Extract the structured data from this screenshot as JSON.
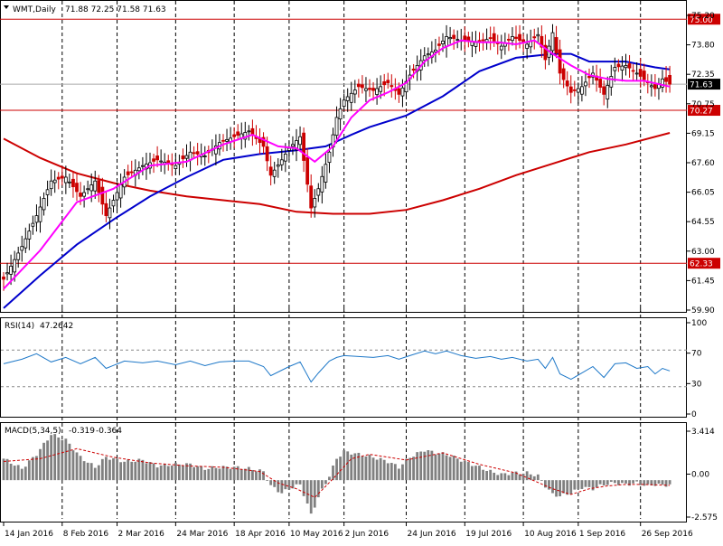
{
  "main_header": {
    "symbol_label": "WMT,Daily",
    "ohlc": "71.88 72.25 71.58 71.63"
  },
  "rsi_header": {
    "label": "RSI(14)",
    "value": "47.2642"
  },
  "macd_header": {
    "label": "MACD(5,34,5)",
    "value1": "-0.319",
    "value2": "-0.364"
  },
  "colors": {
    "background": "#ffffff",
    "bull_candle": "#000000",
    "bear_candle": "#cc0000",
    "ma_fast": "#ff00ff",
    "ma_mid": "#0000cc",
    "ma_slow": "#cc0000",
    "rsi_line": "#1e78c8",
    "macd_hist": "#808080",
    "macd_signal": "#cc0000",
    "hline": "#cc0000",
    "price_tag": "#cc0000",
    "current_tag": "#000000"
  },
  "chart_data": [
    {
      "type": "candlestick",
      "panel": "price",
      "x_tick_labels": [
        "14 Jan 2016",
        "8 Feb 2016",
        "2 Mar 2016",
        "24 Mar 2016",
        "18 Apr 2016",
        "10 May 2016",
        "2 Jun 2016",
        "24 Jun 2016",
        "19 Jul 2016",
        "10 Aug 2016",
        "1 Sep 2016",
        "26 Sep 2016"
      ],
      "y_tick_labels": [
        "75.20",
        "73.80",
        "72.35",
        "70.75",
        "69.15",
        "67.60",
        "66.05",
        "64.55",
        "63.00",
        "61.45",
        "59.90"
      ],
      "ylim": [
        59.9,
        75.2
      ],
      "horizontal_lines": [
        {
          "value": 75.0,
          "label": "75.00"
        },
        {
          "value": 70.27,
          "label": "70.27"
        },
        {
          "value": 62.33,
          "label": "62.33"
        }
      ],
      "current_price": {
        "value": 71.63,
        "label": "71.63"
      },
      "close_path": [
        [
          0,
          61.5
        ],
        [
          5,
          63.2
        ],
        [
          9,
          64.8
        ],
        [
          13,
          66.6
        ],
        [
          17,
          66.8
        ],
        [
          21,
          65.8
        ],
        [
          25,
          66.6
        ],
        [
          28,
          64.8
        ],
        [
          33,
          66.8
        ],
        [
          38,
          67.4
        ],
        [
          42,
          67.7
        ],
        [
          47,
          67.4
        ],
        [
          51,
          68.1
        ],
        [
          55,
          67.9
        ],
        [
          59,
          68.6
        ],
        [
          63,
          68.9
        ],
        [
          67,
          69.2
        ],
        [
          71,
          68.4
        ],
        [
          73,
          66.9
        ],
        [
          76,
          67.7
        ],
        [
          78,
          68.3
        ],
        [
          81,
          68.9
        ],
        [
          84,
          65.2
        ],
        [
          86,
          66.2
        ],
        [
          89,
          68.1
        ],
        [
          91,
          69.9
        ],
        [
          93,
          70.8
        ],
        [
          97,
          71.5
        ],
        [
          101,
          71.3
        ],
        [
          105,
          71.7
        ],
        [
          108,
          71.1
        ],
        [
          111,
          72.1
        ],
        [
          115,
          73.1
        ],
        [
          118,
          73.4
        ],
        [
          121,
          74.1
        ],
        [
          125,
          73.9
        ],
        [
          129,
          73.8
        ],
        [
          133,
          74.0
        ],
        [
          136,
          73.6
        ],
        [
          139,
          74.1
        ],
        [
          143,
          73.7
        ],
        [
          146,
          74.2
        ],
        [
          148,
          72.9
        ],
        [
          150,
          74.3
        ],
        [
          152,
          72.2
        ],
        [
          155,
          71.2
        ],
        [
          158,
          71.5
        ],
        [
          161,
          72.2
        ],
        [
          164,
          71.1
        ],
        [
          167,
          72.5
        ],
        [
          170,
          72.6
        ],
        [
          173,
          72.2
        ],
        [
          176,
          71.7
        ],
        [
          178,
          71.4
        ],
        [
          180,
          71.9
        ],
        [
          182,
          71.63
        ]
      ],
      "series": [
        {
          "name": "MA fast",
          "values": [
            [
              0,
              61.0
            ],
            [
              10,
              63.0
            ],
            [
              20,
              65.5
            ],
            [
              30,
              66.2
            ],
            [
              40,
              67.4
            ],
            [
              50,
              67.6
            ],
            [
              60,
              68.5
            ],
            [
              68,
              69.0
            ],
            [
              75,
              68.4
            ],
            [
              80,
              68.3
            ],
            [
              85,
              67.6
            ],
            [
              90,
              68.4
            ],
            [
              95,
              69.9
            ],
            [
              100,
              70.8
            ],
            [
              105,
              71.2
            ],
            [
              110,
              71.7
            ],
            [
              115,
              72.8
            ],
            [
              120,
              73.5
            ],
            [
              125,
              73.9
            ],
            [
              130,
              73.8
            ],
            [
              135,
              73.8
            ],
            [
              140,
              73.7
            ],
            [
              145,
              73.9
            ],
            [
              150,
              73.2
            ],
            [
              155,
              72.6
            ],
            [
              160,
              72.1
            ],
            [
              165,
              71.9
            ],
            [
              170,
              71.8
            ],
            [
              175,
              71.8
            ],
            [
              182,
              71.5
            ]
          ]
        },
        {
          "name": "MA mid",
          "values": [
            [
              0,
              60.0
            ],
            [
              10,
              61.7
            ],
            [
              20,
              63.3
            ],
            [
              30,
              64.6
            ],
            [
              40,
              65.8
            ],
            [
              50,
              66.8
            ],
            [
              60,
              67.7
            ],
            [
              70,
              68.0
            ],
            [
              80,
              68.2
            ],
            [
              88,
              68.4
            ],
            [
              95,
              69.0
            ],
            [
              100,
              69.4
            ],
            [
              110,
              70.0
            ],
            [
              120,
              71.0
            ],
            [
              130,
              72.3
            ],
            [
              140,
              73.0
            ],
            [
              150,
              73.2
            ],
            [
              155,
              73.2
            ],
            [
              160,
              72.8
            ],
            [
              170,
              72.8
            ],
            [
              178,
              72.5
            ],
            [
              182,
              72.4
            ]
          ]
        },
        {
          "name": "MA slow",
          "values": [
            [
              0,
              68.8
            ],
            [
              10,
              67.8
            ],
            [
              20,
              67.0
            ],
            [
              30,
              66.5
            ],
            [
              40,
              66.1
            ],
            [
              50,
              65.8
            ],
            [
              60,
              65.6
            ],
            [
              70,
              65.4
            ],
            [
              80,
              65.0
            ],
            [
              90,
              64.9
            ],
            [
              100,
              64.9
            ],
            [
              110,
              65.1
            ],
            [
              120,
              65.6
            ],
            [
              130,
              66.2
            ],
            [
              140,
              66.9
            ],
            [
              150,
              67.5
            ],
            [
              160,
              68.1
            ],
            [
              170,
              68.5
            ],
            [
              182,
              69.1
            ]
          ]
        }
      ]
    },
    {
      "type": "line",
      "panel": "rsi",
      "y_tick_labels": [
        "100",
        "70",
        "30",
        "0"
      ],
      "ylim": [
        0,
        100
      ],
      "levels": [
        70,
        30
      ],
      "values": [
        [
          0,
          55
        ],
        [
          5,
          60
        ],
        [
          9,
          66
        ],
        [
          13,
          57
        ],
        [
          17,
          62
        ],
        [
          21,
          55
        ],
        [
          25,
          62
        ],
        [
          28,
          50
        ],
        [
          33,
          58
        ],
        [
          38,
          56
        ],
        [
          42,
          58
        ],
        [
          47,
          54
        ],
        [
          51,
          58
        ],
        [
          55,
          53
        ],
        [
          59,
          57
        ],
        [
          63,
          58
        ],
        [
          67,
          58
        ],
        [
          71,
          52
        ],
        [
          73,
          42
        ],
        [
          76,
          48
        ],
        [
          78,
          52
        ],
        [
          81,
          57
        ],
        [
          84,
          35
        ],
        [
          86,
          45
        ],
        [
          89,
          58
        ],
        [
          91,
          62
        ],
        [
          93,
          64
        ],
        [
          97,
          63
        ],
        [
          101,
          62
        ],
        [
          105,
          64
        ],
        [
          108,
          60
        ],
        [
          111,
          64
        ],
        [
          115,
          69
        ],
        [
          118,
          66
        ],
        [
          121,
          69
        ],
        [
          125,
          64
        ],
        [
          129,
          61
        ],
        [
          133,
          63
        ],
        [
          136,
          60
        ],
        [
          139,
          62
        ],
        [
          143,
          58
        ],
        [
          146,
          60
        ],
        [
          148,
          50
        ],
        [
          150,
          62
        ],
        [
          152,
          44
        ],
        [
          155,
          38
        ],
        [
          158,
          45
        ],
        [
          161,
          52
        ],
        [
          164,
          40
        ],
        [
          167,
          55
        ],
        [
          170,
          56
        ],
        [
          173,
          50
        ],
        [
          176,
          52
        ],
        [
          178,
          44
        ],
        [
          180,
          50
        ],
        [
          182,
          47.26
        ]
      ]
    },
    {
      "type": "bar",
      "panel": "macd",
      "y_tick_labels": [
        "3.414",
        "0.00",
        "-2.575"
      ],
      "ylim": [
        -2.575,
        3.414
      ],
      "histogram": [
        [
          0,
          1.5
        ],
        [
          5,
          0.8
        ],
        [
          9,
          1.8
        ],
        [
          13,
          3.2
        ],
        [
          17,
          2.8
        ],
        [
          21,
          1.6
        ],
        [
          25,
          0.9
        ],
        [
          28,
          1.6
        ],
        [
          33,
          1.3
        ],
        [
          38,
          1.4
        ],
        [
          42,
          1.0
        ],
        [
          47,
          1.1
        ],
        [
          51,
          1.1
        ],
        [
          55,
          0.8
        ],
        [
          59,
          0.9
        ],
        [
          63,
          0.9
        ],
        [
          67,
          0.8
        ],
        [
          71,
          0.6
        ],
        [
          73,
          -0.4
        ],
        [
          76,
          -0.9
        ],
        [
          78,
          -0.6
        ],
        [
          81,
          -0.3
        ],
        [
          84,
          -2.4
        ],
        [
          86,
          -1.2
        ],
        [
          89,
          0.3
        ],
        [
          91,
          1.5
        ],
        [
          93,
          2.0
        ],
        [
          97,
          1.8
        ],
        [
          101,
          1.6
        ],
        [
          105,
          1.3
        ],
        [
          108,
          0.9
        ],
        [
          111,
          1.6
        ],
        [
          115,
          2.1
        ],
        [
          118,
          1.9
        ],
        [
          121,
          1.8
        ],
        [
          125,
          1.4
        ],
        [
          129,
          1.0
        ],
        [
          133,
          0.6
        ],
        [
          136,
          0.4
        ],
        [
          139,
          0.5
        ],
        [
          143,
          0.5
        ],
        [
          146,
          0.3
        ],
        [
          148,
          -0.4
        ],
        [
          150,
          -1.0
        ],
        [
          152,
          -1.1
        ],
        [
          155,
          -0.9
        ],
        [
          158,
          -0.5
        ],
        [
          161,
          -0.6
        ],
        [
          164,
          -0.3
        ],
        [
          167,
          -0.2
        ],
        [
          170,
          -0.3
        ],
        [
          173,
          -0.2
        ],
        [
          176,
          -0.4
        ],
        [
          178,
          -0.3
        ],
        [
          180,
          -0.36
        ],
        [
          182,
          -0.319
        ]
      ],
      "signal": [
        [
          0,
          1.3
        ],
        [
          10,
          1.5
        ],
        [
          20,
          2.2
        ],
        [
          30,
          1.6
        ],
        [
          40,
          1.2
        ],
        [
          50,
          1.0
        ],
        [
          60,
          0.9
        ],
        [
          70,
          0.6
        ],
        [
          75,
          -0.2
        ],
        [
          80,
          -0.6
        ],
        [
          85,
          -1.2
        ],
        [
          90,
          0.1
        ],
        [
          95,
          1.5
        ],
        [
          100,
          1.8
        ],
        [
          110,
          1.4
        ],
        [
          120,
          1.9
        ],
        [
          130,
          1.1
        ],
        [
          140,
          0.5
        ],
        [
          150,
          -0.6
        ],
        [
          155,
          -1.0
        ],
        [
          160,
          -0.6
        ],
        [
          165,
          -0.4
        ],
        [
          170,
          -0.3
        ],
        [
          175,
          -0.3
        ],
        [
          182,
          -0.364
        ]
      ]
    }
  ]
}
